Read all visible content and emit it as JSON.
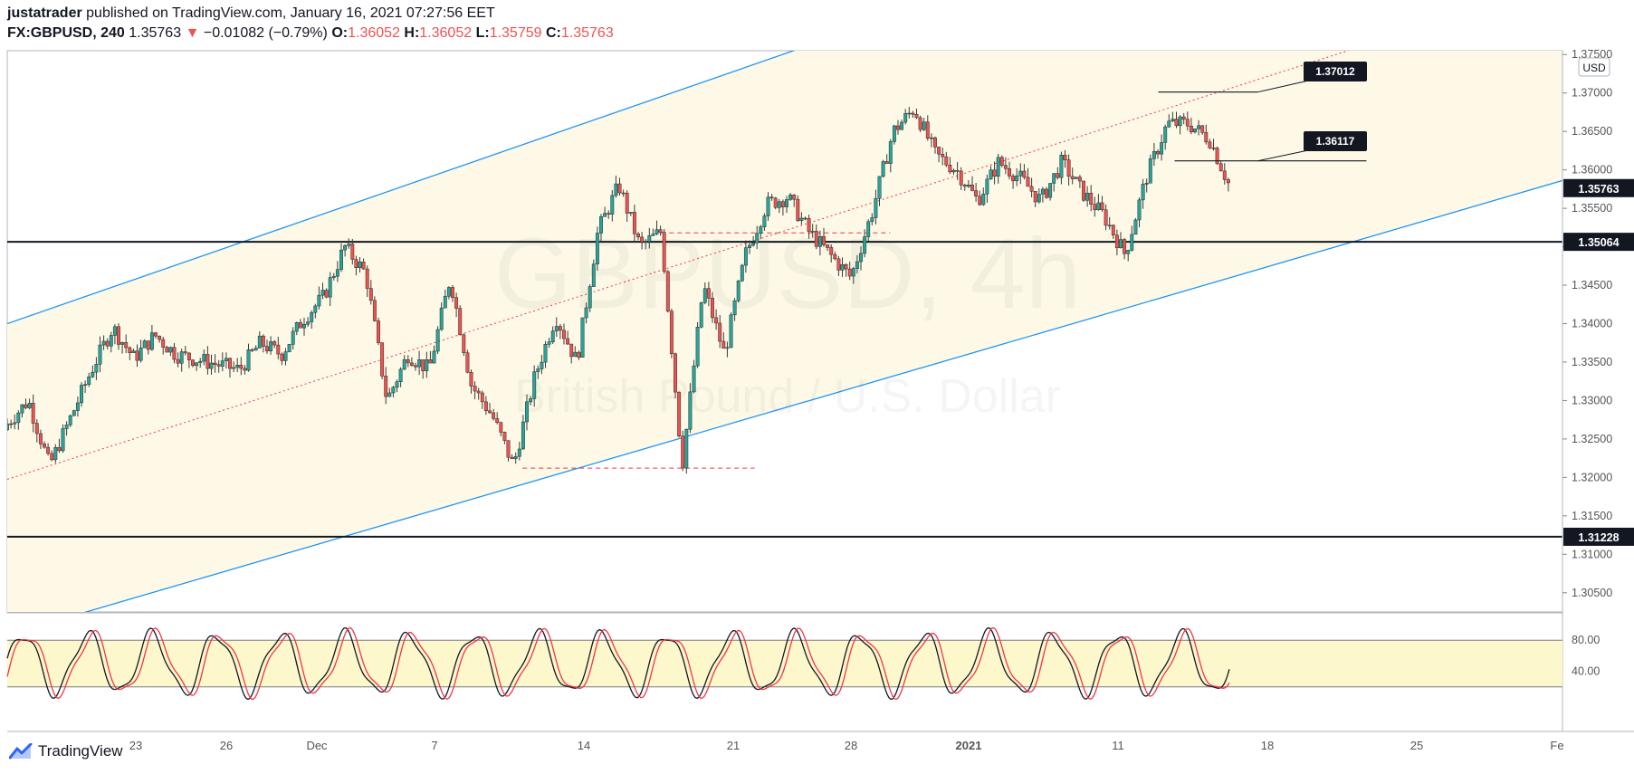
{
  "header": {
    "author": "justatrader",
    "published": "published on TradingView.com, January 16, 2021 07:27:56 EET",
    "symbol": "FX:GBPUSD, 240",
    "last": "1.35763",
    "change_arrow": "▼",
    "change": "−0.01082 (−0.79%)",
    "o_label": "O:",
    "o": "1.36052",
    "h_label": "H:",
    "h": "1.36052",
    "l_label": "L:",
    "l": "1.35759",
    "c_label": "C:",
    "c": "1.35763"
  },
  "watermark": {
    "symbol": "GBPUSD, 4h",
    "name": "British Pound / U.S. Dollar"
  },
  "footer": {
    "brand": "TradingView",
    "icon": "tradingview-logo-icon"
  },
  "colors": {
    "up": "#26a69a",
    "down": "#ef5350",
    "channel": "#2196f3",
    "channel_fill": "#fdf9e6",
    "stoch_k": "#131722",
    "stoch_d": "#f23645",
    "stoch_band": "#fdf7cc",
    "axis_text": "#555555",
    "label_bg": "#131722"
  },
  "chart_data": [
    {
      "type": "candlestick",
      "title": "GBPUSD, 4h",
      "currency_label": "USD",
      "ylim": [
        1.3025,
        1.3755
      ],
      "y_ticks": [
        "1.30500",
        "1.31000",
        "1.31500",
        "1.32000",
        "1.32500",
        "1.33000",
        "1.33500",
        "1.34000",
        "1.34500",
        "1.35000",
        "1.35500",
        "1.36000",
        "1.36500",
        "1.37000",
        "1.37500"
      ],
      "x_ticks": [
        "23",
        "26",
        "Dec",
        "7",
        "14",
        "21",
        "28",
        "2021",
        "11",
        "18",
        "25",
        "Fe"
      ],
      "price_labels": [
        "1.35763",
        "1.35064",
        "1.31228"
      ],
      "horizontal_levels": [
        1.35064,
        1.31228
      ],
      "callouts": [
        "1.37012",
        "1.36117"
      ],
      "path": [
        [
          "11-19",
          1.327
        ],
        [
          "11-20",
          1.33
        ],
        [
          "11-21",
          1.3215
        ],
        [
          "11-23",
          1.334
        ],
        [
          "11-24",
          1.3395
        ],
        [
          "11-25",
          1.3355
        ],
        [
          "11-26",
          1.3385
        ],
        [
          "11-27",
          1.336
        ],
        [
          "11-30",
          1.334
        ],
        [
          "12-01",
          1.3375
        ],
        [
          "12-02",
          1.336
        ],
        [
          "12-03",
          1.3405
        ],
        [
          "12-04",
          1.3435
        ],
        [
          "12-05",
          1.35
        ],
        [
          "12-06",
          1.3465
        ],
        [
          "12-07",
          1.33
        ],
        [
          "12-08",
          1.336
        ],
        [
          "12-09",
          1.334
        ],
        [
          "12-10",
          1.346
        ],
        [
          "12-11",
          1.332
        ],
        [
          "12-12",
          1.328
        ],
        [
          "12-13",
          1.3215
        ],
        [
          "12-14",
          1.333
        ],
        [
          "12-15",
          1.341
        ],
        [
          "12-16",
          1.335
        ],
        [
          "12-17",
          1.352
        ],
        [
          "12-18",
          1.358
        ],
        [
          "12-19",
          1.35
        ],
        [
          "12-20",
          1.352
        ],
        [
          "12-21",
          1.3215
        ],
        [
          "12-22",
          1.345
        ],
        [
          "12-23",
          1.336
        ],
        [
          "12-24",
          1.349
        ],
        [
          "12-25",
          1.3555
        ],
        [
          "12-26",
          1.3565
        ],
        [
          "12-27",
          1.352
        ],
        [
          "12-28",
          1.349
        ],
        [
          "12-29",
          1.346
        ],
        [
          "12-30",
          1.3545
        ],
        [
          "12-31",
          1.365
        ],
        [
          "01-01",
          1.368
        ],
        [
          "01-02",
          1.362
        ],
        [
          "01-03",
          1.36
        ],
        [
          "01-04",
          1.356
        ],
        [
          "01-05",
          1.361
        ],
        [
          "01-06",
          1.359
        ],
        [
          "01-07",
          1.356
        ],
        [
          "01-08",
          1.361
        ],
        [
          "01-09",
          1.357
        ],
        [
          "01-10",
          1.354
        ],
        [
          "01-11",
          1.349
        ],
        [
          "01-12",
          1.359
        ],
        [
          "01-13",
          1.366
        ],
        [
          "01-14",
          1.366
        ],
        [
          "01-15",
          1.364
        ],
        [
          "01-16",
          1.3576
        ]
      ],
      "channel": {
        "upper_line": {
          "from": [
            "11-19",
            1.34
          ],
          "to": [
            "12-31",
            1.38
          ]
        },
        "lower_line": {
          "from": [
            "11-19",
            1.2995
          ],
          "to": [
            "01-16",
            1.346
          ]
        }
      }
    },
    {
      "type": "line",
      "title": "Stochastic",
      "ylim": [
        0,
        100
      ],
      "y_ticks": [
        "80.00",
        "40.00"
      ],
      "band": [
        20,
        80
      ],
      "series": [
        {
          "name": "",
          "color": "#131722",
          "cycle_days": 3.05
        },
        {
          "name": "",
          "color": "#f23645",
          "cycle_days": 3.05
        }
      ]
    }
  ]
}
